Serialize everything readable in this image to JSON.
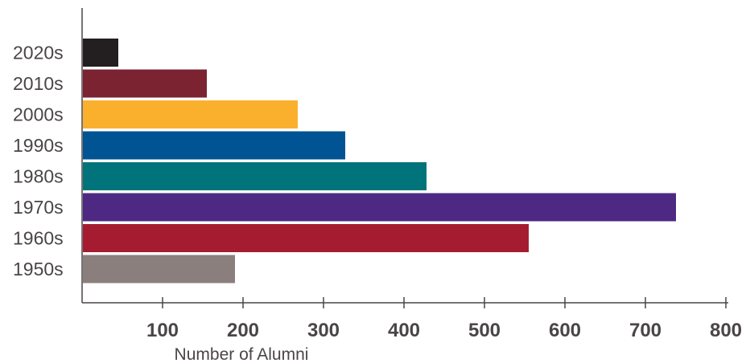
{
  "chart_data": {
    "type": "bar",
    "orientation": "horizontal",
    "categories": [
      "2020s",
      "2010s",
      "2000s",
      "1990s",
      "1980s",
      "1970s",
      "1960s",
      "1950s"
    ],
    "values": [
      45,
      155,
      268,
      327,
      428,
      738,
      555,
      190
    ],
    "colors": [
      "#231f20",
      "#7b2331",
      "#fbb02d",
      "#005493",
      "#00747a",
      "#4d2983",
      "#a51c30",
      "#8b7f7d"
    ],
    "xlabel": "Number of Alumni",
    "ylabel": "",
    "title": "",
    "xlim": [
      0,
      800
    ],
    "xticks": [
      100,
      200,
      300,
      400,
      500,
      600,
      700,
      800
    ],
    "xtick_labels": [
      "100",
      "200",
      "300",
      "400",
      "500",
      "600",
      "700",
      "800"
    ],
    "grid": false
  }
}
